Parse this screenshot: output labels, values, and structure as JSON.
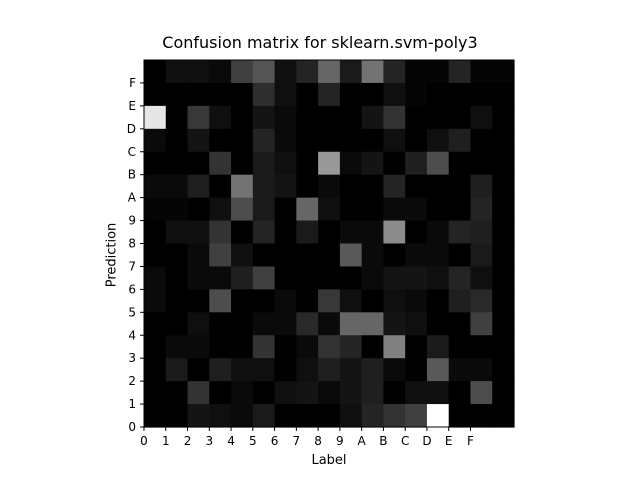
{
  "chart_data": {
    "type": "heatmap",
    "title": "Confusion matrix for sklearn.svm-poly3",
    "xlabel": "Label",
    "ylabel": "Prediction",
    "x_categories": [
      "0",
      "1",
      "2",
      "3",
      "4",
      "5",
      "6",
      "7",
      "8",
      "9",
      "A",
      "B",
      "C",
      "D",
      "E",
      "F"
    ],
    "y_categories": [
      "0",
      "1",
      "2",
      "3",
      "4",
      "5",
      "6",
      "7",
      "8",
      "9",
      "A",
      "B",
      "C",
      "D",
      "E",
      "F"
    ],
    "extra_trailing_column": true,
    "colormap": "gray",
    "grid": false,
    "legend": "none",
    "rows": [
      {
        "label": "F",
        "values": [
          0,
          0.06,
          0.06,
          0.04,
          0.25,
          0.33,
          0.06,
          0.14,
          0.4,
          0.1,
          0.45,
          0.14,
          0.02,
          0.02,
          0.14,
          0.02,
          0.02
        ]
      },
      {
        "label": "E",
        "values": [
          0,
          0,
          0,
          0,
          0,
          0.18,
          0.06,
          0,
          0.14,
          0,
          0,
          0.06,
          0.02,
          0,
          0,
          0,
          0
        ]
      },
      {
        "label": "D",
        "values": [
          0.9,
          0,
          0.22,
          0.06,
          0,
          0.08,
          0.04,
          0,
          0,
          0,
          0.08,
          0.2,
          0,
          0,
          0,
          0.06,
          0
        ]
      },
      {
        "label": "C",
        "values": [
          0.04,
          0,
          0.08,
          0,
          0,
          0.14,
          0.04,
          0,
          0,
          0,
          0,
          0.06,
          0,
          0.06,
          0.12,
          0,
          0
        ]
      },
      {
        "label": "B",
        "values": [
          0,
          0,
          0,
          0.2,
          0,
          0.1,
          0.06,
          0,
          0.6,
          0.04,
          0.08,
          0,
          0.12,
          0.3,
          0,
          0,
          0
        ]
      },
      {
        "label": "A",
        "values": [
          0.04,
          0.04,
          0.12,
          0,
          0.45,
          0.1,
          0.08,
          0,
          0.04,
          0,
          0,
          0.14,
          0,
          0,
          0,
          0.12,
          0
        ]
      },
      {
        "label": "9",
        "values": [
          0.02,
          0.02,
          0,
          0.06,
          0.3,
          0.1,
          0,
          0.4,
          0.06,
          0,
          0,
          0.04,
          0.04,
          0,
          0,
          0.14,
          0
        ]
      },
      {
        "label": "8",
        "values": [
          0,
          0.06,
          0.06,
          0.2,
          0,
          0.14,
          0,
          0.1,
          0,
          0.04,
          0.04,
          0.55,
          0,
          0.04,
          0.14,
          0.12,
          0
        ]
      },
      {
        "label": "7",
        "values": [
          0,
          0,
          0.04,
          0.25,
          0.06,
          0,
          0,
          0,
          0,
          0.35,
          0.04,
          0,
          0.04,
          0.04,
          0,
          0.1,
          0
        ]
      },
      {
        "label": "6",
        "values": [
          0.04,
          0,
          0.04,
          0.04,
          0.12,
          0.25,
          0,
          0,
          0,
          0,
          0.04,
          0.08,
          0.08,
          0.06,
          0.14,
          0.06,
          0
        ]
      },
      {
        "label": "5",
        "values": [
          0.04,
          0,
          0,
          0.3,
          0,
          0,
          0.04,
          0,
          0.22,
          0.06,
          0,
          0.06,
          0.04,
          0,
          0.12,
          0.16,
          0
        ]
      },
      {
        "label": "4",
        "values": [
          0,
          0,
          0.06,
          0,
          0,
          0.04,
          0.04,
          0.16,
          0.04,
          0.4,
          0.4,
          0.08,
          0.06,
          0,
          0,
          0.25,
          0
        ]
      },
      {
        "label": "3",
        "values": [
          0,
          0.04,
          0.04,
          0,
          0,
          0.2,
          0,
          0.04,
          0.2,
          0.14,
          0,
          0.5,
          0,
          0.1,
          0,
          0,
          0
        ]
      },
      {
        "label": "2",
        "values": [
          0,
          0.1,
          0,
          0.12,
          0.06,
          0.06,
          0,
          0.06,
          0.12,
          0.08,
          0.12,
          0.04,
          0,
          0.35,
          0.04,
          0.04,
          0
        ]
      },
      {
        "label": "1",
        "values": [
          0,
          0,
          0.2,
          0,
          0.04,
          0,
          0.06,
          0.08,
          0.04,
          0.08,
          0.12,
          0,
          0.06,
          0.06,
          0,
          0.3,
          0
        ]
      },
      {
        "label": "0",
        "values": [
          0,
          0,
          0.08,
          0.06,
          0.04,
          0.1,
          0,
          0,
          0,
          0.06,
          0.14,
          0.2,
          0.25,
          1.0,
          0,
          0,
          0
        ]
      }
    ]
  }
}
